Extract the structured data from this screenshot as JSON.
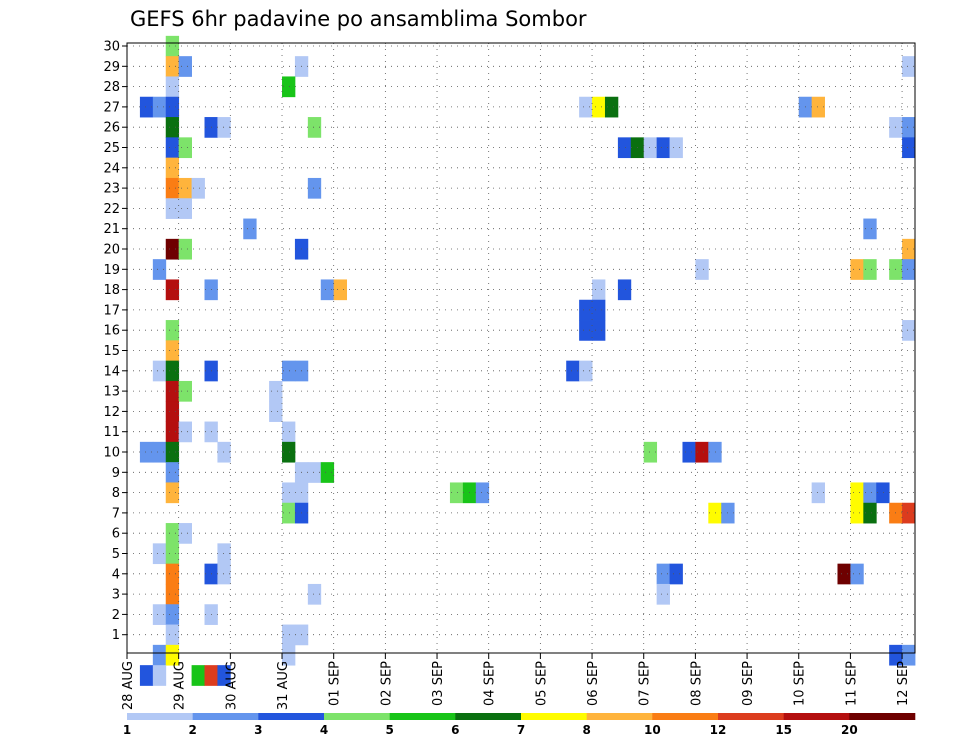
{
  "chart_data": {
    "type": "heatmap",
    "title": "GEFS 6hr padavine po ansamblima Sombor",
    "xlabel": "",
    "ylabel": "",
    "x_tick_labels": [
      "28 AUG",
      "29 AUG",
      "30 AUG",
      "31 AUG",
      "01 SEP",
      "02 SEP",
      "03 SEP",
      "04 SEP",
      "05 SEP",
      "06 SEP",
      "07 SEP",
      "08 SEP",
      "09 SEP",
      "10 SEP",
      "11 SEP",
      "12 SEP"
    ],
    "y_tick_labels": [
      "1",
      "2",
      "3",
      "4",
      "5",
      "6",
      "7",
      "8",
      "9",
      "10",
      "11",
      "12",
      "13",
      "14",
      "15",
      "16",
      "17",
      "18",
      "19",
      "20",
      "21",
      "22",
      "23",
      "24",
      "25",
      "26",
      "27",
      "28",
      "29",
      "30"
    ],
    "xlim": [
      0,
      61
    ],
    "ylim": [
      0,
      30
    ],
    "x_units": "6-hour steps from 28 AUG 00Z",
    "y_units": "ensemble member",
    "grid": true,
    "legend_placement": "bottom",
    "legend": {
      "labels": [
        "1",
        "2",
        "3",
        "4",
        "5",
        "6",
        "7",
        "8",
        "10",
        "12",
        "15",
        "20"
      ],
      "colors": [
        "#b2c8f5",
        "#6495ed",
        "#2255dd",
        "#7de36a",
        "#18c418",
        "#0a7010",
        "#fffc00",
        "#ffb43c",
        "#fa7d14",
        "#dc3c1e",
        "#b40f0f",
        "#6e0000"
      ]
    },
    "cells": [
      {
        "x": 3,
        "y": 30,
        "c": 3
      },
      {
        "x": 3,
        "y": 29,
        "c": 7
      },
      {
        "x": 4,
        "y": 29,
        "c": 1
      },
      {
        "x": 13,
        "y": 29,
        "c": 0
      },
      {
        "x": 60,
        "y": 29,
        "c": 0
      },
      {
        "x": 3,
        "y": 28,
        "c": 0
      },
      {
        "x": 12,
        "y": 28,
        "c": 4
      },
      {
        "x": 1,
        "y": 27,
        "c": 2
      },
      {
        "x": 2,
        "y": 27,
        "c": 1
      },
      {
        "x": 3,
        "y": 27,
        "c": 2
      },
      {
        "x": 35,
        "y": 27,
        "c": 0
      },
      {
        "x": 36,
        "y": 27,
        "c": 6
      },
      {
        "x": 37,
        "y": 27,
        "c": 5
      },
      {
        "x": 52,
        "y": 27,
        "c": 1
      },
      {
        "x": 53,
        "y": 27,
        "c": 7
      },
      {
        "x": 3,
        "y": 26,
        "c": 5
      },
      {
        "x": 6,
        "y": 26,
        "c": 2
      },
      {
        "x": 7,
        "y": 26,
        "c": 0
      },
      {
        "x": 14,
        "y": 26,
        "c": 3
      },
      {
        "x": 59,
        "y": 26,
        "c": 0
      },
      {
        "x": 60,
        "y": 26,
        "c": 1
      },
      {
        "x": 3,
        "y": 25,
        "c": 2
      },
      {
        "x": 4,
        "y": 25,
        "c": 3
      },
      {
        "x": 38,
        "y": 25,
        "c": 2
      },
      {
        "x": 39,
        "y": 25,
        "c": 5
      },
      {
        "x": 40,
        "y": 25,
        "c": 0
      },
      {
        "x": 41,
        "y": 25,
        "c": 2
      },
      {
        "x": 42,
        "y": 25,
        "c": 0
      },
      {
        "x": 60,
        "y": 25,
        "c": 2
      },
      {
        "x": 3,
        "y": 24,
        "c": 7
      },
      {
        "x": 3,
        "y": 23,
        "c": 8
      },
      {
        "x": 4,
        "y": 23,
        "c": 7
      },
      {
        "x": 5,
        "y": 23,
        "c": 0
      },
      {
        "x": 14,
        "y": 23,
        "c": 1
      },
      {
        "x": 3,
        "y": 22,
        "c": 0
      },
      {
        "x": 4,
        "y": 22,
        "c": 0
      },
      {
        "x": 9,
        "y": 21,
        "c": 1
      },
      {
        "x": 57,
        "y": 21,
        "c": 1
      },
      {
        "x": 3,
        "y": 20,
        "c": 11
      },
      {
        "x": 4,
        "y": 20,
        "c": 3
      },
      {
        "x": 13,
        "y": 20,
        "c": 2
      },
      {
        "x": 60,
        "y": 20,
        "c": 7
      },
      {
        "x": 2,
        "y": 19,
        "c": 1
      },
      {
        "x": 44,
        "y": 19,
        "c": 0
      },
      {
        "x": 56,
        "y": 19,
        "c": 7
      },
      {
        "x": 57,
        "y": 19,
        "c": 3
      },
      {
        "x": 59,
        "y": 19,
        "c": 3
      },
      {
        "x": 60,
        "y": 19,
        "c": 1
      },
      {
        "x": 3,
        "y": 18,
        "c": 10
      },
      {
        "x": 6,
        "y": 18,
        "c": 1
      },
      {
        "x": 15,
        "y": 18,
        "c": 1
      },
      {
        "x": 16,
        "y": 18,
        "c": 7
      },
      {
        "x": 36,
        "y": 18,
        "c": 0
      },
      {
        "x": 38,
        "y": 18,
        "c": 2
      },
      {
        "x": 35,
        "y": 17,
        "c": 2
      },
      {
        "x": 36,
        "y": 17,
        "c": 2
      },
      {
        "x": 3,
        "y": 16,
        "c": 3
      },
      {
        "x": 35,
        "y": 16,
        "c": 2
      },
      {
        "x": 36,
        "y": 16,
        "c": 2
      },
      {
        "x": 60,
        "y": 16,
        "c": 0
      },
      {
        "x": 3,
        "y": 15,
        "c": 7
      },
      {
        "x": 2,
        "y": 14,
        "c": 0
      },
      {
        "x": 3,
        "y": 14,
        "c": 5
      },
      {
        "x": 6,
        "y": 14,
        "c": 2
      },
      {
        "x": 12,
        "y": 14,
        "c": 1
      },
      {
        "x": 13,
        "y": 14,
        "c": 1
      },
      {
        "x": 34,
        "y": 14,
        "c": 2
      },
      {
        "x": 35,
        "y": 14,
        "c": 0
      },
      {
        "x": 3,
        "y": 13,
        "c": 10
      },
      {
        "x": 4,
        "y": 13,
        "c": 3
      },
      {
        "x": 11,
        "y": 13,
        "c": 0
      },
      {
        "x": 3,
        "y": 12,
        "c": 10
      },
      {
        "x": 11,
        "y": 12,
        "c": 0
      },
      {
        "x": 3,
        "y": 11,
        "c": 10
      },
      {
        "x": 4,
        "y": 11,
        "c": 0
      },
      {
        "x": 6,
        "y": 11,
        "c": 0
      },
      {
        "x": 12,
        "y": 11,
        "c": 0
      },
      {
        "x": 1,
        "y": 10,
        "c": 1
      },
      {
        "x": 2,
        "y": 10,
        "c": 1
      },
      {
        "x": 3,
        "y": 10,
        "c": 5
      },
      {
        "x": 7,
        "y": 10,
        "c": 0
      },
      {
        "x": 12,
        "y": 10,
        "c": 5
      },
      {
        "x": 40,
        "y": 10,
        "c": 3
      },
      {
        "x": 43,
        "y": 10,
        "c": 2
      },
      {
        "x": 44,
        "y": 10,
        "c": 10
      },
      {
        "x": 45,
        "y": 10,
        "c": 1
      },
      {
        "x": 3,
        "y": 9,
        "c": 1
      },
      {
        "x": 13,
        "y": 9,
        "c": 0
      },
      {
        "x": 14,
        "y": 9,
        "c": 0
      },
      {
        "x": 15,
        "y": 9,
        "c": 4
      },
      {
        "x": 3,
        "y": 8,
        "c": 7
      },
      {
        "x": 12,
        "y": 8,
        "c": 0
      },
      {
        "x": 13,
        "y": 8,
        "c": 0
      },
      {
        "x": 25,
        "y": 8,
        "c": 3
      },
      {
        "x": 26,
        "y": 8,
        "c": 4
      },
      {
        "x": 27,
        "y": 8,
        "c": 1
      },
      {
        "x": 53,
        "y": 8,
        "c": 0
      },
      {
        "x": 56,
        "y": 8,
        "c": 6
      },
      {
        "x": 57,
        "y": 8,
        "c": 1
      },
      {
        "x": 58,
        "y": 8,
        "c": 2
      },
      {
        "x": 12,
        "y": 7,
        "c": 3
      },
      {
        "x": 13,
        "y": 7,
        "c": 2
      },
      {
        "x": 45,
        "y": 7,
        "c": 6
      },
      {
        "x": 46,
        "y": 7,
        "c": 1
      },
      {
        "x": 56,
        "y": 7,
        "c": 6
      },
      {
        "x": 57,
        "y": 7,
        "c": 5
      },
      {
        "x": 59,
        "y": 7,
        "c": 8
      },
      {
        "x": 60,
        "y": 7,
        "c": 9
      },
      {
        "x": 3,
        "y": 6,
        "c": 3
      },
      {
        "x": 4,
        "y": 6,
        "c": 0
      },
      {
        "x": 2,
        "y": 5,
        "c": 0
      },
      {
        "x": 3,
        "y": 5,
        "c": 3
      },
      {
        "x": 7,
        "y": 5,
        "c": 0
      },
      {
        "x": 3,
        "y": 4,
        "c": 8
      },
      {
        "x": 6,
        "y": 4,
        "c": 2
      },
      {
        "x": 7,
        "y": 4,
        "c": 0
      },
      {
        "x": 41,
        "y": 4,
        "c": 1
      },
      {
        "x": 42,
        "y": 4,
        "c": 2
      },
      {
        "x": 55,
        "y": 4,
        "c": 11
      },
      {
        "x": 56,
        "y": 4,
        "c": 1
      },
      {
        "x": 3,
        "y": 3,
        "c": 8
      },
      {
        "x": 14,
        "y": 3,
        "c": 0
      },
      {
        "x": 41,
        "y": 3,
        "c": 0
      },
      {
        "x": 2,
        "y": 2,
        "c": 0
      },
      {
        "x": 3,
        "y": 2,
        "c": 1
      },
      {
        "x": 6,
        "y": 2,
        "c": 0
      },
      {
        "x": 3,
        "y": 1,
        "c": 0
      },
      {
        "x": 12,
        "y": 1,
        "c": 0
      },
      {
        "x": 13,
        "y": 1,
        "c": 0
      },
      {
        "x": 2,
        "y": 0,
        "c": 1
      },
      {
        "x": 3,
        "y": 0,
        "c": 6
      },
      {
        "x": 12,
        "y": 0,
        "c": 0
      },
      {
        "x": 59,
        "y": 0,
        "c": 2
      },
      {
        "x": 60,
        "y": 0,
        "c": 1
      },
      {
        "x": 1,
        "y": -1,
        "c": 2
      },
      {
        "x": 2,
        "y": -1,
        "c": 0
      },
      {
        "x": 5,
        "y": -1,
        "c": 4
      },
      {
        "x": 6,
        "y": -1,
        "c": 9
      },
      {
        "x": 7,
        "y": -1,
        "c": 2
      }
    ]
  }
}
